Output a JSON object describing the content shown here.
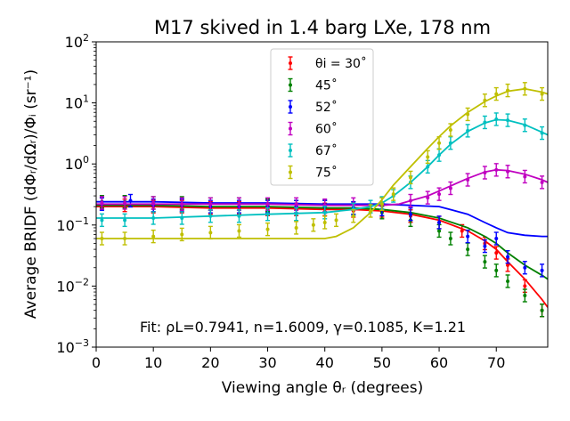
{
  "chart_data": {
    "type": "scatter",
    "title": "M17 skived in 1.4 barg LXe, 178 nm",
    "xlabel": "Viewing angle θᵣ (degrees)",
    "ylabel": "Average BRIDF (dΦᵣ/dΩᵣ)/Φᵢ (sr⁻¹)",
    "xlim": [
      0,
      79
    ],
    "ylim": [
      0.001,
      100
    ],
    "yscale": "log",
    "xticks": [
      "0",
      "10",
      "20",
      "30",
      "40",
      "50",
      "60",
      "70"
    ],
    "yticks": [
      {
        "base": "10",
        "exp": "−3",
        "value": 0.001
      },
      {
        "base": "10",
        "exp": "−2",
        "value": 0.01
      },
      {
        "base": "10",
        "exp": "−1",
        "value": 0.1
      },
      {
        "base": "10",
        "exp": "0",
        "value": 1
      },
      {
        "base": "10",
        "exp": "1",
        "value": 10
      },
      {
        "base": "10",
        "exp": "2",
        "value": 100
      }
    ],
    "grid": false,
    "legend_position": "top-center",
    "annotation": "Fit: ρL=0.7941, n=1.6009, γ=0.1085, K=1.21",
    "series": [
      {
        "name": "θi = 30˚",
        "color": "#ff0000",
        "x": [
          1,
          5,
          10,
          15,
          20,
          25,
          30,
          35,
          40,
          45,
          50,
          55,
          60,
          64,
          68,
          70,
          72,
          75,
          78
        ],
        "y": [
          0.22,
          0.21,
          0.2,
          0.2,
          0.19,
          0.19,
          0.18,
          0.18,
          0.18,
          0.17,
          0.17,
          0.14,
          0.11,
          0.08,
          0.05,
          0.035,
          0.022,
          0.01,
          0.004
        ],
        "fit_x": [
          0,
          10,
          20,
          30,
          40,
          45,
          50,
          55,
          60,
          65,
          68,
          70,
          72,
          75,
          78,
          79
        ],
        "fit_y": [
          0.2,
          0.2,
          0.19,
          0.19,
          0.18,
          0.18,
          0.17,
          0.15,
          0.12,
          0.08,
          0.055,
          0.04,
          0.025,
          0.013,
          0.006,
          0.0045
        ]
      },
      {
        "name": "45˚",
        "color": "#008000",
        "x": [
          1,
          5,
          10,
          15,
          20,
          25,
          30,
          35,
          40,
          45,
          50,
          55,
          60,
          62,
          65,
          68,
          70,
          72,
          75,
          78
        ],
        "y": [
          0.24,
          0.24,
          0.23,
          0.23,
          0.22,
          0.22,
          0.21,
          0.2,
          0.2,
          0.19,
          0.16,
          0.12,
          0.08,
          0.06,
          0.04,
          0.025,
          0.018,
          0.012,
          0.007,
          0.004
        ],
        "fit_x": [
          0,
          10,
          20,
          30,
          40,
          45,
          50,
          55,
          60,
          65,
          68,
          70,
          72,
          75,
          78,
          79
        ],
        "fit_y": [
          0.21,
          0.21,
          0.2,
          0.2,
          0.19,
          0.19,
          0.18,
          0.16,
          0.13,
          0.09,
          0.065,
          0.05,
          0.035,
          0.022,
          0.015,
          0.013
        ]
      },
      {
        "name": "52˚",
        "color": "#0000ff",
        "x": [
          1,
          6,
          10,
          15,
          20,
          25,
          30,
          35,
          40,
          45,
          50,
          55,
          60,
          65,
          68,
          70,
          72,
          75,
          78
        ],
        "y": [
          0.22,
          0.25,
          0.21,
          0.21,
          0.2,
          0.2,
          0.2,
          0.2,
          0.2,
          0.19,
          0.18,
          0.15,
          0.11,
          0.065,
          0.045,
          0.06,
          0.03,
          0.02,
          0.018
        ],
        "fit_x": [
          0,
          10,
          20,
          30,
          40,
          45,
          50,
          55,
          60,
          65,
          68,
          70,
          72,
          75,
          78,
          79
        ],
        "fit_y": [
          0.24,
          0.24,
          0.23,
          0.23,
          0.22,
          0.22,
          0.22,
          0.21,
          0.2,
          0.15,
          0.11,
          0.09,
          0.075,
          0.068,
          0.065,
          0.065
        ]
      },
      {
        "name": "60˚",
        "color": "#c000c0",
        "x": [
          1,
          5,
          10,
          15,
          20,
          25,
          30,
          35,
          40,
          45,
          50,
          55,
          58,
          60,
          62,
          65,
          68,
          70,
          72,
          75,
          78
        ],
        "y": [
          0.23,
          0.23,
          0.23,
          0.22,
          0.22,
          0.22,
          0.22,
          0.22,
          0.21,
          0.22,
          0.22,
          0.25,
          0.28,
          0.32,
          0.4,
          0.55,
          0.72,
          0.8,
          0.75,
          0.62,
          0.5
        ],
        "fit_x": [
          0,
          10,
          20,
          30,
          40,
          45,
          50,
          53,
          55,
          58,
          60,
          63,
          65,
          68,
          70,
          72,
          75,
          78,
          79
        ],
        "fit_y": [
          0.22,
          0.22,
          0.22,
          0.22,
          0.21,
          0.21,
          0.21,
          0.22,
          0.25,
          0.3,
          0.36,
          0.48,
          0.58,
          0.74,
          0.8,
          0.78,
          0.68,
          0.55,
          0.5
        ]
      },
      {
        "name": "67˚",
        "color": "#00c0c0",
        "x": [
          1,
          5,
          10,
          15,
          20,
          25,
          30,
          35,
          40,
          45,
          48,
          50,
          52,
          55,
          58,
          60,
          62,
          65,
          68,
          70,
          72,
          75,
          78
        ],
        "y": [
          0.12,
          0.12,
          0.13,
          0.13,
          0.14,
          0.14,
          0.15,
          0.15,
          0.16,
          0.18,
          0.2,
          0.23,
          0.3,
          0.5,
          0.9,
          1.4,
          2.2,
          3.5,
          4.8,
          5.4,
          5.2,
          4.3,
          3.2
        ],
        "fit_x": [
          0,
          10,
          20,
          30,
          40,
          45,
          48,
          50,
          52,
          55,
          58,
          60,
          62,
          65,
          68,
          70,
          72,
          75,
          78,
          79
        ],
        "fit_y": [
          0.13,
          0.13,
          0.14,
          0.15,
          0.16,
          0.18,
          0.2,
          0.23,
          0.3,
          0.5,
          0.9,
          1.4,
          2.1,
          3.4,
          4.7,
          5.3,
          5.2,
          4.4,
          3.3,
          3.0
        ]
      },
      {
        "name": "75˚",
        "color": "#bfbf00",
        "x": [
          1,
          5,
          10,
          15,
          20,
          25,
          30,
          35,
          38,
          40,
          42,
          45,
          48,
          50,
          52,
          55,
          58,
          60,
          62,
          65,
          68,
          70,
          72,
          75,
          78
        ],
        "y": [
          0.06,
          0.06,
          0.065,
          0.07,
          0.075,
          0.08,
          0.085,
          0.09,
          0.1,
          0.11,
          0.12,
          0.14,
          0.17,
          0.22,
          0.32,
          0.6,
          1.3,
          2.2,
          3.6,
          6.5,
          11,
          14,
          16,
          17,
          14
        ],
        "fit_x": [
          0,
          10,
          20,
          30,
          35,
          40,
          42,
          45,
          48,
          50,
          52,
          55,
          58,
          60,
          62,
          65,
          68,
          70,
          72,
          75,
          78,
          79
        ],
        "fit_y": [
          0.06,
          0.06,
          0.06,
          0.06,
          0.06,
          0.06,
          0.065,
          0.09,
          0.16,
          0.26,
          0.45,
          0.9,
          1.8,
          2.8,
          4.2,
          7,
          10.5,
          13,
          15.5,
          17,
          15,
          14
        ]
      }
    ]
  }
}
